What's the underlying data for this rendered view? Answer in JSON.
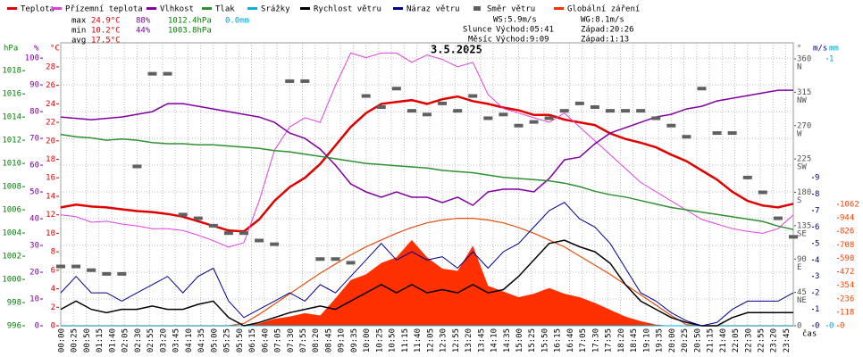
{
  "chart_data": {
    "type": "line",
    "title": "3.5.2025",
    "x_label": "čas",
    "xlim": [
      0,
      1440
    ],
    "xticks": [
      {
        "value": 0,
        "label": "00:00"
      },
      {
        "value": 25,
        "label": "00:25"
      },
      {
        "value": 50,
        "label": "00:50"
      },
      {
        "value": 75,
        "label": "01:15"
      },
      {
        "value": 100,
        "label": "01:40"
      },
      {
        "value": 125,
        "label": "02:05"
      },
      {
        "value": 150,
        "label": "02:30"
      },
      {
        "value": 175,
        "label": "02:55"
      },
      {
        "value": 200,
        "label": "03:20"
      },
      {
        "value": 225,
        "label": "03:45"
      },
      {
        "value": 250,
        "label": "04:10"
      },
      {
        "value": 275,
        "label": "04:35"
      },
      {
        "value": 300,
        "label": "05:00"
      },
      {
        "value": 325,
        "label": "05:25"
      },
      {
        "value": 350,
        "label": "05:50"
      },
      {
        "value": 375,
        "label": "06:15"
      },
      {
        "value": 400,
        "label": "06:40"
      },
      {
        "value": 425,
        "label": "07:05"
      },
      {
        "value": 450,
        "label": "07:30"
      },
      {
        "value": 475,
        "label": "07:55"
      },
      {
        "value": 500,
        "label": "08:20"
      },
      {
        "value": 525,
        "label": "08:45"
      },
      {
        "value": 550,
        "label": "09:10"
      },
      {
        "value": 575,
        "label": "09:35"
      },
      {
        "value": 600,
        "label": "10:00"
      },
      {
        "value": 625,
        "label": "10:25"
      },
      {
        "value": 650,
        "label": "10:50"
      },
      {
        "value": 675,
        "label": "11:15"
      },
      {
        "value": 700,
        "label": "11:40"
      },
      {
        "value": 725,
        "label": "12:05"
      },
      {
        "value": 750,
        "label": "12:30"
      },
      {
        "value": 775,
        "label": "12:55"
      },
      {
        "value": 800,
        "label": "13:20"
      },
      {
        "value": 825,
        "label": "13:45"
      },
      {
        "value": 850,
        "label": "14:10"
      },
      {
        "value": 875,
        "label": "14:35"
      },
      {
        "value": 900,
        "label": "15:00"
      },
      {
        "value": 925,
        "label": "15:25"
      },
      {
        "value": 950,
        "label": "15:50"
      },
      {
        "value": 975,
        "label": "16:15"
      },
      {
        "value": 1000,
        "label": "16:40"
      },
      {
        "value": 1025,
        "label": "17:05"
      },
      {
        "value": 1050,
        "label": "17:30"
      },
      {
        "value": 1075,
        "label": "17:55"
      },
      {
        "value": 1100,
        "label": "18:20"
      },
      {
        "value": 1125,
        "label": "18:45"
      },
      {
        "value": 1150,
        "label": "19:10"
      },
      {
        "value": 1175,
        "label": "19:35"
      },
      {
        "value": 1200,
        "label": "20:00"
      },
      {
        "value": 1225,
        "label": "20:25"
      },
      {
        "value": 1250,
        "label": "20:50"
      },
      {
        "value": 1275,
        "label": "21:15"
      },
      {
        "value": 1300,
        "label": "21:40"
      },
      {
        "value": 1325,
        "label": "22:05"
      },
      {
        "value": 1350,
        "label": "22:30"
      },
      {
        "value": 1375,
        "label": "22:55"
      },
      {
        "value": 1400,
        "label": "23:20"
      },
      {
        "value": 1425,
        "label": "23:45"
      }
    ],
    "grid": true,
    "axes": [
      {
        "unit": "hPa",
        "color": "#008000",
        "lim": [
          996,
          1020.4
        ],
        "ticks": [
          996,
          998,
          1000,
          1002,
          1004,
          1006,
          1008,
          1010,
          1012,
          1014,
          1016,
          1018
        ]
      },
      {
        "unit": "%",
        "color": "#8000a0",
        "lim": [
          0,
          105.7
        ],
        "ticks": [
          0,
          10,
          20,
          30,
          40,
          50,
          60,
          70,
          80,
          90,
          100
        ]
      },
      {
        "unit": "°C",
        "color": "#e00000",
        "lim": [
          0,
          30.6
        ],
        "ticks": [
          0,
          2,
          4,
          6,
          8,
          10,
          12,
          14,
          16,
          18,
          20,
          22,
          24,
          26,
          28
        ]
      },
      {
        "unit": "°",
        "color": "#505050",
        "lim": [
          0,
          381.7
        ],
        "ticks": [
          0,
          45,
          90,
          135,
          180,
          225,
          270,
          315,
          360
        ],
        "compass": [
          null,
          "NE",
          "E",
          "SE",
          "S",
          "SW",
          "W",
          "NW",
          "N"
        ]
      },
      {
        "unit": "m/s",
        "color": "#000080",
        "lim": [
          0,
          17.2
        ],
        "ticks": [
          0,
          1,
          2,
          3,
          4,
          5,
          6,
          7,
          8,
          9
        ]
      },
      {
        "unit": "mm",
        "color": "#00a0d0",
        "lim": [
          0,
          1.06
        ],
        "ticks": [
          0,
          1
        ]
      },
      {
        "color": "#ff4000",
        "lim": [
          0,
          2475
        ],
        "ticks": [
          0,
          118,
          236,
          354,
          472,
          590,
          708,
          826,
          944,
          1062
        ]
      }
    ],
    "x": [
      0,
      30,
      60,
      90,
      120,
      150,
      180,
      210,
      240,
      270,
      300,
      330,
      360,
      390,
      420,
      450,
      480,
      510,
      540,
      570,
      600,
      630,
      660,
      690,
      720,
      750,
      780,
      810,
      840,
      870,
      900,
      930,
      960,
      990,
      1020,
      1050,
      1080,
      1110,
      1140,
      1170,
      1200,
      1230,
      1260,
      1290,
      1320,
      1350,
      1380,
      1410,
      1440
    ],
    "series": [
      {
        "name": "Teplota",
        "color": "#e00000",
        "axis": 2,
        "kind": "line",
        "width": 2.5,
        "values": [
          12.8,
          13.1,
          12.9,
          12.8,
          12.6,
          12.4,
          12.3,
          12.1,
          11.8,
          11.3,
          10.8,
          10.3,
          10.2,
          11.5,
          13.5,
          15.0,
          16.0,
          17.5,
          19.5,
          21.5,
          23.0,
          24.0,
          24.2,
          24.4,
          24.0,
          24.5,
          24.8,
          24.3,
          24.0,
          23.6,
          23.3,
          22.8,
          22.8,
          22.3,
          22.0,
          21.7,
          20.8,
          20.2,
          19.8,
          19.3,
          18.5,
          17.8,
          16.8,
          15.8,
          14.5,
          13.5,
          13.0,
          12.8,
          13.2
        ]
      },
      {
        "name": "Přízemní teplota",
        "color": "#e040e0",
        "axis": 2,
        "kind": "line",
        "width": 1,
        "values": [
          12,
          11.8,
          11.2,
          11.3,
          11.0,
          10.8,
          10.5,
          10.5,
          10.3,
          9.8,
          9.2,
          8.5,
          9.0,
          13.5,
          19.0,
          21.5,
          22.5,
          22.0,
          26.0,
          29.5,
          29.0,
          29.5,
          29.5,
          28.5,
          29.3,
          28.8,
          28.0,
          28.5,
          25.0,
          23.5,
          23.0,
          22.5,
          22.0,
          23.0,
          21.5,
          20.0,
          18.5,
          17.0,
          15.5,
          14.5,
          13.5,
          12.5,
          11.5,
          11.0,
          10.5,
          10.2,
          10.0,
          10.5,
          12.0
        ]
      },
      {
        "name": "Vlhkost",
        "color": "#8000a0",
        "axis": 1,
        "kind": "line",
        "width": 1.5,
        "values": [
          78,
          77.5,
          77,
          77.5,
          78,
          79,
          80,
          83,
          83,
          82,
          81,
          80,
          79,
          78,
          76,
          72,
          70,
          66,
          60,
          53,
          50,
          48,
          50,
          48,
          48,
          46,
          48,
          45,
          50,
          51,
          51,
          50,
          55,
          62,
          63,
          68,
          72,
          74,
          76,
          78,
          79,
          81,
          82,
          84,
          85,
          86,
          87,
          88,
          88
        ]
      },
      {
        "name": "Tlak",
        "color": "#309030",
        "axis": 0,
        "kind": "line",
        "width": 1.5,
        "values": [
          1012.5,
          1012.3,
          1012.2,
          1012.0,
          1012.1,
          1012.0,
          1011.8,
          1011.7,
          1011.7,
          1011.6,
          1011.6,
          1011.5,
          1011.4,
          1011.3,
          1011.1,
          1011.0,
          1010.8,
          1010.6,
          1010.4,
          1010.2,
          1010.0,
          1009.9,
          1009.8,
          1009.7,
          1009.6,
          1009.4,
          1009.3,
          1009.2,
          1009.0,
          1008.8,
          1008.7,
          1008.6,
          1008.5,
          1008.3,
          1008.0,
          1007.6,
          1007.3,
          1007.1,
          1006.8,
          1006.5,
          1006.2,
          1006.0,
          1005.8,
          1005.6,
          1005.4,
          1005.2,
          1005.0,
          1004.6,
          1004.3
        ]
      },
      {
        "name": "Srážky",
        "color": "#00b0e0",
        "axis": 5,
        "kind": "line",
        "width": 1,
        "values": [
          0,
          0,
          0,
          0,
          0,
          0,
          0,
          0,
          0,
          0,
          0,
          0,
          0,
          0,
          0,
          0,
          0,
          0,
          0,
          0,
          0,
          0,
          0,
          0,
          0,
          0,
          0,
          0,
          0,
          0,
          0,
          0,
          0,
          0,
          0,
          0,
          0,
          0,
          0,
          0,
          0,
          0,
          0,
          0,
          0,
          0,
          0,
          0,
          0
        ]
      },
      {
        "name": "Rychlost větru",
        "color": "#000000",
        "axis": 4,
        "kind": "line",
        "width": 1.5,
        "values": [
          1,
          1.5,
          1,
          0.8,
          1,
          1,
          1.2,
          1,
          1,
          1.3,
          1.5,
          0.5,
          0,
          0.2,
          0.5,
          0.8,
          1,
          1.2,
          1,
          1.5,
          2,
          2.5,
          2,
          2.5,
          2,
          2.2,
          2,
          2.5,
          2,
          2.2,
          3,
          4,
          5,
          5.2,
          4.8,
          4.5,
          3.8,
          2.5,
          1.5,
          1,
          0.5,
          0.2,
          0,
          0,
          0.5,
          0.8,
          0.8,
          0.8,
          0.8
        ]
      },
      {
        "name": "Náraz větru",
        "color": "#000090",
        "axis": 4,
        "kind": "line",
        "width": 1,
        "values": [
          2,
          3,
          2,
          2,
          1.5,
          2,
          2.5,
          3,
          2,
          3,
          3.5,
          1.5,
          0.5,
          1,
          1.5,
          2,
          1.5,
          2.5,
          2,
          3,
          4,
          5,
          4,
          4.5,
          4,
          4.2,
          3.5,
          4.5,
          3.5,
          4.5,
          5,
          6,
          7,
          7.5,
          6.5,
          6,
          5,
          3.5,
          2,
          1.5,
          0.8,
          0.3,
          0,
          0.2,
          1,
          1.5,
          1.5,
          1.5,
          2
        ]
      },
      {
        "name": "Směr větru",
        "color": "#606060",
        "axis": 3,
        "kind": "squares",
        "values": [
          80,
          80,
          75,
          70,
          70,
          215,
          340,
          340,
          150,
          145,
          135,
          125,
          125,
          115,
          110,
          330,
          330,
          90,
          90,
          85,
          310,
          295,
          320,
          290,
          285,
          300,
          290,
          310,
          280,
          285,
          270,
          275,
          280,
          290,
          300,
          295,
          290,
          290,
          290,
          280,
          270,
          255,
          320,
          260,
          260,
          200,
          180,
          145,
          120
        ]
      },
      {
        "name": "Globální záření",
        "color": "#ff3000",
        "axis": 6,
        "kind": "area",
        "values": [
          0,
          0,
          0,
          0,
          0,
          0,
          0,
          0,
          0,
          0,
          0,
          0,
          5,
          20,
          60,
          80,
          110,
          90,
          240,
          400,
          450,
          550,
          600,
          750,
          600,
          500,
          480,
          700,
          350,
          300,
          250,
          280,
          330,
          280,
          250,
          200,
          140,
          80,
          40,
          10,
          0,
          0,
          0,
          0,
          0,
          0,
          0,
          0,
          0
        ]
      }
    ],
    "clear_sky": {
      "color": "#e05010",
      "axis": 6,
      "values": [
        0,
        0,
        0,
        0,
        0,
        0,
        0,
        0,
        0,
        0,
        0,
        0,
        20,
        100,
        190,
        280,
        370,
        460,
        540,
        620,
        690,
        750,
        810,
        860,
        900,
        925,
        940,
        940,
        925,
        900,
        860,
        810,
        750,
        690,
        610,
        530,
        450,
        360,
        270,
        180,
        90,
        10,
        0,
        0,
        0,
        0,
        0,
        0,
        0
      ]
    },
    "stats": [
      {
        "label": "max",
        "items": [
          {
            "text": "24.9°C",
            "color": "#e00000"
          },
          {
            "text": "88%",
            "color": "#8000a0"
          },
          {
            "text": "1012.4hPa",
            "color": "#008000"
          },
          {
            "text": "0.0mm",
            "color": "#00a0d0"
          }
        ]
      },
      {
        "label": "min",
        "items": [
          {
            "text": "10.2°C",
            "color": "#e00000"
          },
          {
            "text": "44%",
            "color": "#8000a0"
          },
          {
            "text": "1003.8hPa",
            "color": "#008000"
          }
        ]
      },
      {
        "label": "avg",
        "items": [
          {
            "text": "17.5°C",
            "color": "#e00000"
          }
        ]
      }
    ],
    "info": [
      "WS:5.9m/s",
      "WG:8.1m/s",
      "Slunce",
      "Východ:05:41",
      "Západ:20:26",
      "Měsíc",
      "Východ:9:09",
      "Západ:1:13"
    ]
  }
}
